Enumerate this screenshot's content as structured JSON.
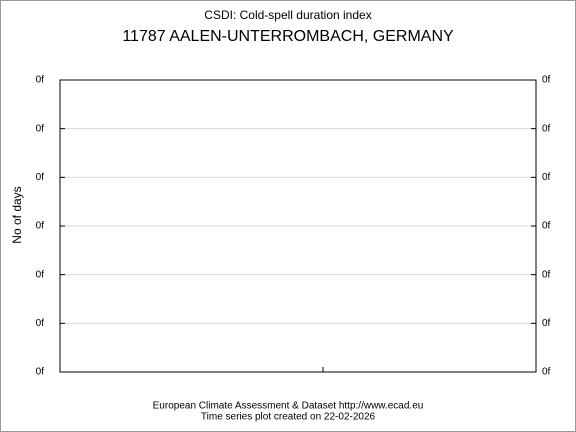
{
  "chart_data": {
    "type": "line",
    "title": "CSDI: Cold-spell duration index",
    "subtitle": "11787 AALEN-UNTERROMBACH, GERMANY",
    "y_label": "No of days",
    "footer": [
      "European Climate Assessment & Dataset  http://www.ecad.eu",
      "Time series plot created on 22-02-2026"
    ],
    "ylim": [
      0,
      6
    ],
    "yticks": [
      {
        "value": 0,
        "label": "0f"
      },
      {
        "value": 1,
        "label": "0f"
      },
      {
        "value": 2,
        "label": "0f"
      },
      {
        "value": 3,
        "label": "0f"
      },
      {
        "value": 4,
        "label": "0f"
      },
      {
        "value": 5,
        "label": "0f"
      },
      {
        "value": 6,
        "label": "0f"
      }
    ],
    "grid": true
  }
}
